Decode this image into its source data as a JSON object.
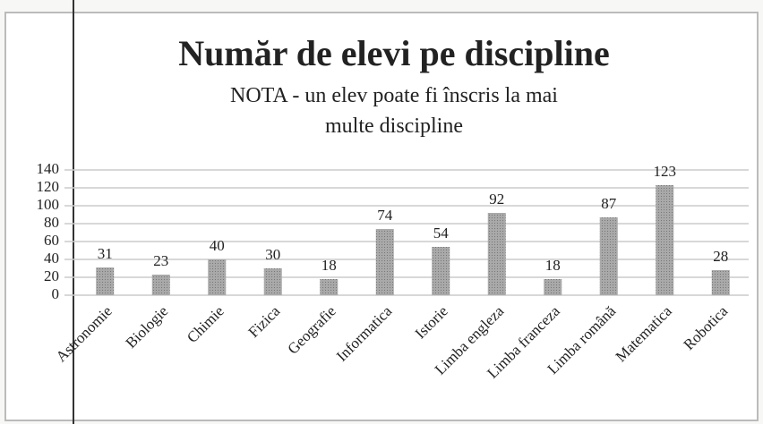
{
  "chart_data": {
    "type": "bar",
    "title": "Număr de elevi pe discipline",
    "subtitle": "NOTA - un elev poate fi înscris la mai multe discipline",
    "categories": [
      "Astronomie",
      "Biologie",
      "Chimie",
      "Fizica",
      "Geografie",
      "Informatica",
      "Istorie",
      "Limba engleza",
      "Limba franceza",
      "Limba română",
      "Matematica",
      "Robotica"
    ],
    "values": [
      31,
      23,
      40,
      30,
      18,
      74,
      54,
      92,
      18,
      87,
      123,
      28
    ],
    "color": "#a9a9a9",
    "ylim": [
      0,
      140
    ],
    "yticks": [
      0,
      20,
      40,
      60,
      80,
      100,
      120,
      140
    ],
    "grid": true
  }
}
